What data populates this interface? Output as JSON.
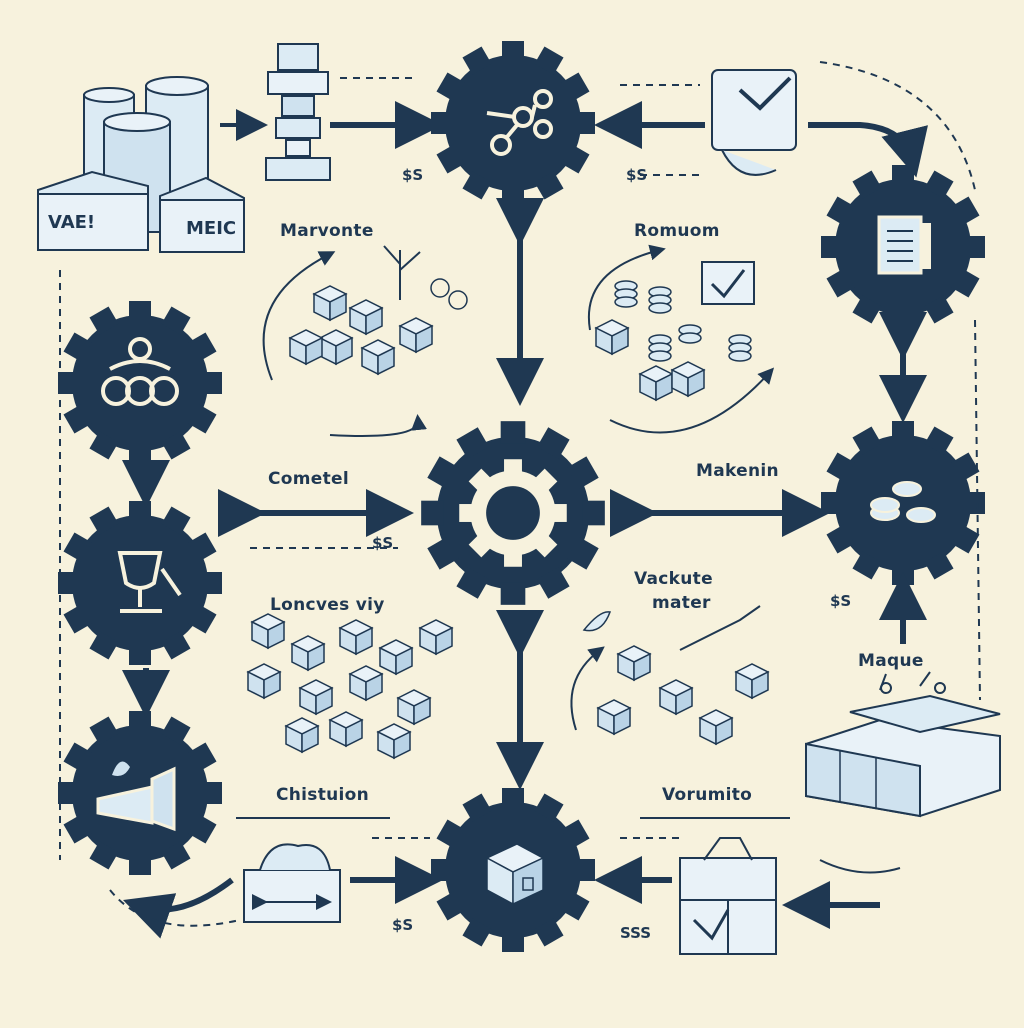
{
  "labels": {
    "marvonte": "Marvonte",
    "romuom": "Romuom",
    "cometel": "Cometel",
    "makenin": "Makenin",
    "loncves": "Loncves viy",
    "vackute_1": "Vackute",
    "vackute_2": "mater",
    "maque": "Maque",
    "chistuion": "Chistuion",
    "vorumito": "Vorumito"
  },
  "box_labels": {
    "box_left": "VAE!",
    "box_right": "MEIC"
  },
  "dashed_tokens": {
    "dollar_a": "$S",
    "dollar_b": "$S",
    "dollar_c": "$S",
    "dollar_d": "$S",
    "dollar_e": "$S",
    "dashes_bottom": "SSS"
  },
  "colors": {
    "background": "#f7f2dd",
    "gear": "#1f3852",
    "ink": "#1f3852",
    "pale_blue": "#dcebf4"
  }
}
